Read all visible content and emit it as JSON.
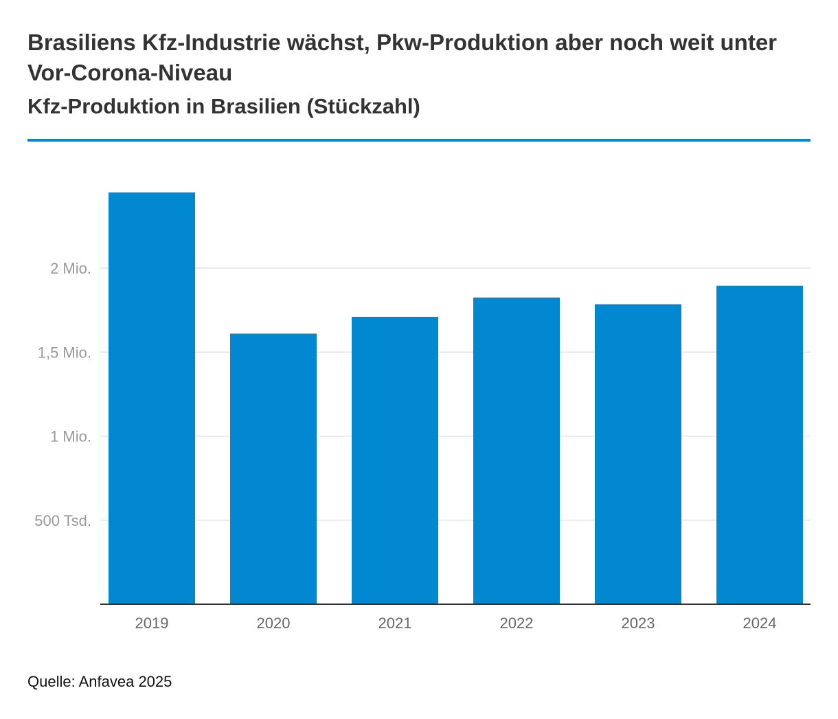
{
  "title": "Brasiliens Kfz-Industrie wächst, Pkw-Produktion aber noch weit unter Vor-Corona-Niveau",
  "subtitle": "Kfz-Produktion in Brasilien (Stückzahl)",
  "source": "Quelle: Anfavea 2025",
  "colors": {
    "accent": "#0288d1",
    "bar": "#0288d1",
    "grid": "#e3e3e3",
    "axis": "#333333",
    "tick_text": "#999999",
    "category_text": "#666666"
  },
  "chart_data": {
    "type": "bar",
    "categories": [
      "2019",
      "2020",
      "2021",
      "2022",
      "2023",
      "2024"
    ],
    "values": [
      2450000,
      1610000,
      1710000,
      1825000,
      1785000,
      1895000
    ],
    "ylim": [
      0,
      2450000
    ],
    "yticks": [
      {
        "value": 500000,
        "label": "500 Tsd."
      },
      {
        "value": 1000000,
        "label": "1 Mio."
      },
      {
        "value": 1500000,
        "label": "1,5 Mio."
      },
      {
        "value": 2000000,
        "label": "2 Mio."
      }
    ],
    "grid": true,
    "legend": "none"
  }
}
